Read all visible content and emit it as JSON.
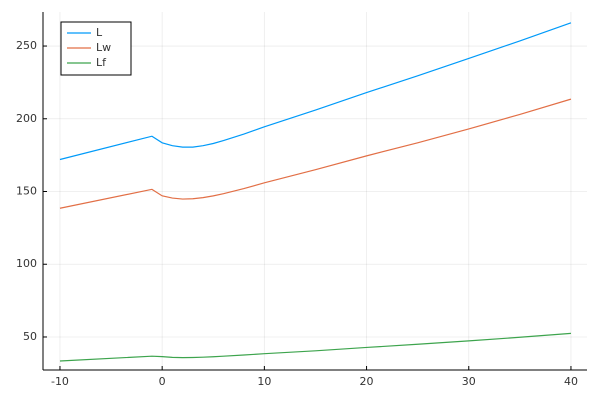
{
  "chart_data": {
    "type": "line",
    "x": [
      -10,
      -1,
      0,
      1,
      2,
      3,
      4,
      5,
      6,
      8,
      10,
      15,
      20,
      25,
      30,
      35,
      40
    ],
    "series": [
      {
        "name": "L",
        "color": "#009af9",
        "values": [
          172,
          188,
          183.5,
          181.5,
          180.5,
          180.5,
          181.5,
          183,
          185,
          189.5,
          194.5,
          206,
          218,
          229.5,
          241.5,
          253.5,
          266
        ]
      },
      {
        "name": "Lw",
        "color": "#e26f46",
        "values": [
          138.5,
          151.5,
          147,
          145.5,
          144.8,
          145,
          145.8,
          147,
          148.5,
          152,
          156,
          165,
          174.5,
          183.5,
          193,
          203,
          213.5
        ]
      },
      {
        "name": "Lf",
        "color": "#3da44d",
        "values": [
          33.5,
          36.8,
          36.5,
          36,
          35.8,
          35.9,
          36.1,
          36.4,
          36.8,
          37.6,
          38.5,
          40.5,
          42.8,
          45,
          47.3,
          49.8,
          52.5
        ]
      }
    ],
    "xlim": [
      -11.66,
      41.57
    ],
    "ylim": [
      27.3,
      273.4
    ],
    "xticks": [
      -10,
      0,
      10,
      20,
      30,
      40
    ],
    "yticks": [
      50,
      100,
      150,
      200,
      250
    ],
    "grid": true,
    "legend": "top-left"
  }
}
